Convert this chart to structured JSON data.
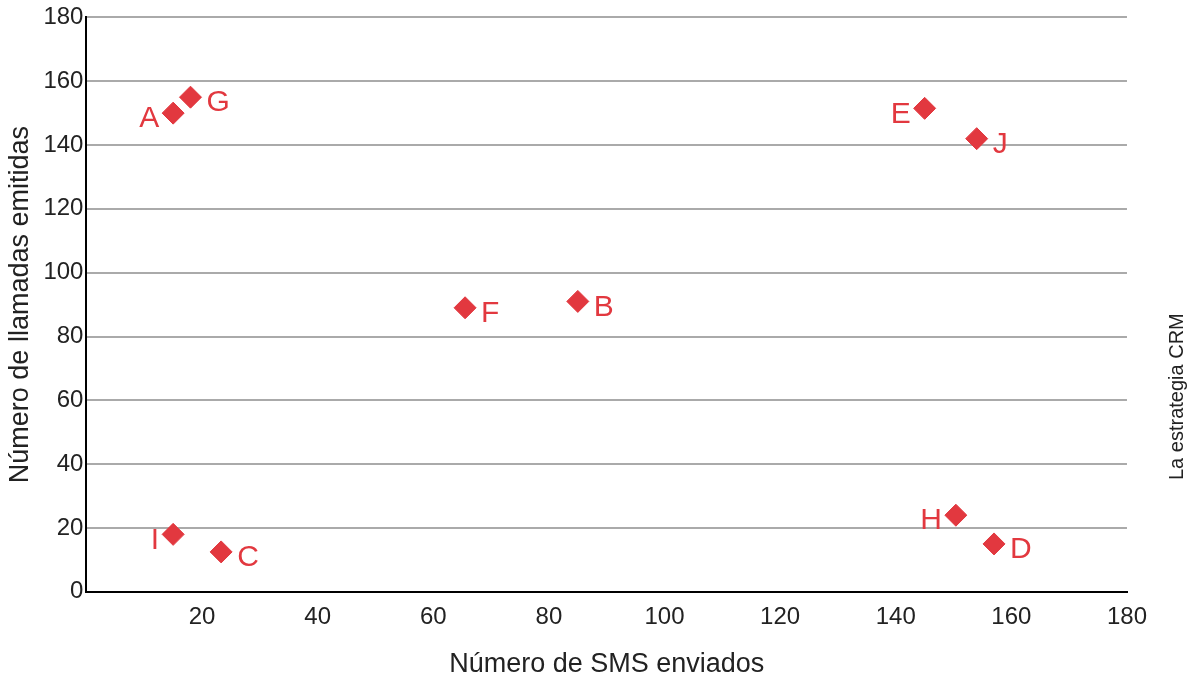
{
  "chart_data": {
    "type": "scatter",
    "xlabel": "Número de SMS enviados",
    "ylabel": "Número de llamadas emitidas",
    "x": [
      15,
      85,
      23.3,
      157,
      145,
      65.5,
      18,
      150.4,
      15,
      154
    ],
    "values": [
      150,
      91,
      12.5,
      15,
      151.5,
      89,
      155,
      24,
      18,
      142
    ],
    "color": "#e2383f",
    "marker": "diamond",
    "grid": "y",
    "xlim": [
      0,
      180
    ],
    "xticks": [
      20,
      40,
      60,
      80,
      100,
      120,
      140,
      160,
      180
    ],
    "ylim": [
      0,
      180
    ],
    "yticks": [
      0,
      20,
      40,
      60,
      80,
      100,
      120,
      140,
      160,
      180
    ],
    "annotations": [
      {
        "text": "A",
        "x": 15,
        "y": 150
      },
      {
        "text": "B",
        "x": 85,
        "y": 91
      },
      {
        "text": "C",
        "x": 23.3,
        "y": 12.5
      },
      {
        "text": "D",
        "x": 157,
        "y": 15
      },
      {
        "text": "E",
        "x": 145,
        "y": 151.5
      },
      {
        "text": "F",
        "x": 65.5,
        "y": 89
      },
      {
        "text": "G",
        "x": 18,
        "y": 155
      },
      {
        "text": "H",
        "x": 150.4,
        "y": 24
      },
      {
        "text": "I",
        "x": 15,
        "y": 18
      },
      {
        "text": "J",
        "x": 154,
        "y": 142
      },
      "La estrategia CRM"
    ]
  }
}
